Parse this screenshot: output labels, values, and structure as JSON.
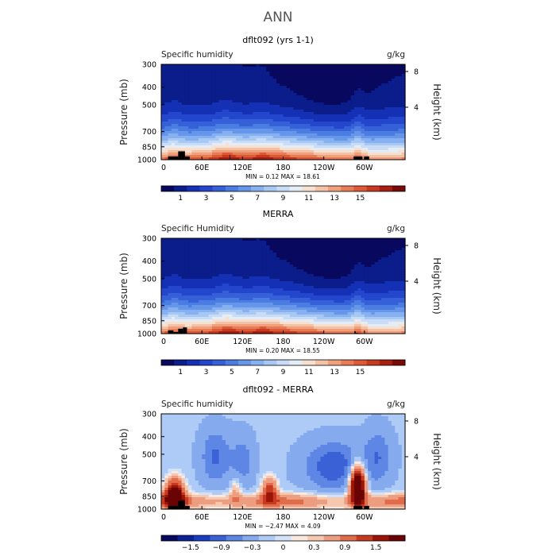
{
  "page_title": "ANN",
  "palettes": {
    "absolute": [
      "#08095e",
      "#0a1d8a",
      "#1430b4",
      "#2346cc",
      "#3560d8",
      "#4a7ce2",
      "#6696ea",
      "#86b0f0",
      "#a8c8f4",
      "#c8dcf8",
      "#e4ecf6",
      "#f8e0d0",
      "#f4c2a6",
      "#f0a07a",
      "#e87c56",
      "#dc5a36",
      "#c83a20",
      "#a82010",
      "#7a0a06"
    ],
    "difference": [
      "#08095e",
      "#0c2296",
      "#1a3cc0",
      "#3a62d6",
      "#5e86e4",
      "#86aaee",
      "#aecaf6",
      "#d2e2f8",
      "#fbe8e0",
      "#f6c8b0",
      "#ee9e80",
      "#e06c4c",
      "#c83a20",
      "#9a1408",
      "#6a0404"
    ]
  },
  "chart_data": [
    {
      "type": "heatmap",
      "title": "dflt092 (yrs 1-1)",
      "field_label": "Specific humidity",
      "units": "g/kg",
      "ylabel": "Pressure (mb)",
      "y2label": "Height (km)",
      "xticks": [
        "0",
        "60E",
        "120E",
        "180",
        "120W",
        "60W"
      ],
      "x_range": [
        0,
        360
      ],
      "yticks": [
        300,
        400,
        500,
        700,
        850,
        1000
      ],
      "y2ticks": [
        8,
        4
      ],
      "stats": "MIN =    0.12   MAX =   18.61",
      "colorbar_ticks": [
        "1",
        "3",
        "5",
        "7",
        "9",
        "11",
        "13",
        "15"
      ],
      "palette": "absolute",
      "field_model": "humidity",
      "topography": "model"
    },
    {
      "type": "heatmap",
      "title": "MERRA",
      "field_label": "Specific Humidity",
      "units": "g/kg",
      "ylabel": "Pressure (mb)",
      "y2label": "Height (km)",
      "xticks": [
        "0",
        "60E",
        "120E",
        "180",
        "120W",
        "60W"
      ],
      "x_range": [
        0,
        360
      ],
      "yticks": [
        300,
        400,
        500,
        700,
        850,
        1000
      ],
      "y2ticks": [
        8,
        4
      ],
      "stats": "MIN =    0.20   MAX =   18.55",
      "colorbar_ticks": [
        "1",
        "3",
        "5",
        "7",
        "9",
        "11",
        "13",
        "15"
      ],
      "palette": "absolute",
      "field_model": "humidity",
      "topography": "merra"
    },
    {
      "type": "heatmap",
      "title": "dflt092 - MERRA",
      "field_label": "Specific humidity",
      "units": "g/kg",
      "ylabel": "Pressure (mb)",
      "y2label": "Height (km)",
      "xticks": [
        "0",
        "60E",
        "120E",
        "180",
        "120W",
        "60W"
      ],
      "x_range": [
        0,
        360
      ],
      "yticks": [
        300,
        400,
        500,
        700,
        850,
        1000
      ],
      "y2ticks": [
        8,
        4
      ],
      "stats": "MIN =   −2.47   MAX =    4.09",
      "colorbar_ticks": [
        "−1.5",
        "−0.9",
        "−0.3",
        "0",
        "0.3",
        "0.9",
        "1.5"
      ],
      "palette": "difference",
      "field_model": "difference",
      "topography": "model"
    }
  ]
}
